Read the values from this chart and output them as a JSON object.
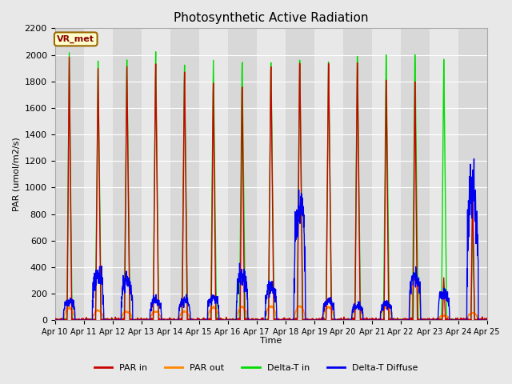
{
  "title": "Photosynthetic Active Radiation",
  "ylabel": "PAR (umol/m2/s)",
  "xlabel": "Time",
  "legend_labels": [
    "PAR in",
    "PAR out",
    "Delta-T in",
    "Delta-T Diffuse"
  ],
  "legend_colors": [
    "#cc0000",
    "#ff8800",
    "#00dd00",
    "#0000ee"
  ],
  "annotation_text": "VR_met",
  "annotation_fc": "#ffffcc",
  "annotation_ec": "#996600",
  "ylim": [
    0,
    2200
  ],
  "yticks": [
    0,
    200,
    400,
    600,
    800,
    1000,
    1200,
    1400,
    1600,
    1800,
    2000,
    2200
  ],
  "xtick_labels": [
    "Apr 10",
    "Apr 11",
    "Apr 12",
    "Apr 13",
    "Apr 14",
    "Apr 15",
    "Apr 16",
    "Apr 17",
    "Apr 18",
    "Apr 19",
    "Apr 20",
    "Apr 21",
    "Apr 22",
    "Apr 23",
    "Apr 24",
    "Apr 25"
  ],
  "bg_color": "#e8e8e8",
  "plot_bg_even": "#e0e0e0",
  "plot_bg_odd": "#ebebeb",
  "line_width": 1.0,
  "n_days": 15,
  "points_per_day": 144,
  "figwidth": 6.4,
  "figheight": 4.8,
  "dpi": 100
}
